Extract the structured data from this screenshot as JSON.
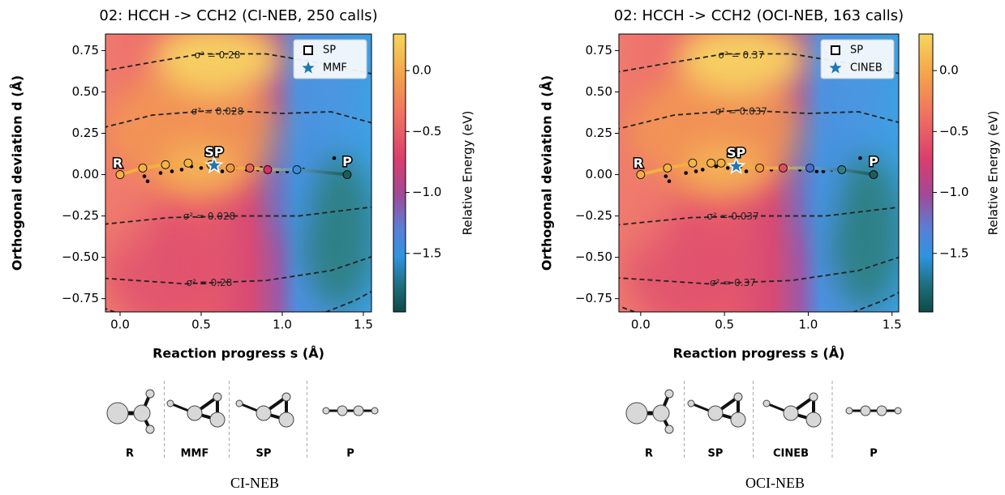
{
  "chart_data": [
    {
      "type": "scatter",
      "title": "02: HCCH -> CCH2 (CI-NEB, 250 calls)",
      "x_label": "Reaction progress s (Å)",
      "y_label": "Orthogonal deviation d (Å)",
      "colorbar_label": "Relative Energy (eV)",
      "xlim": [
        -0.09,
        1.55
      ],
      "ylim": [
        -0.83,
        0.85
      ],
      "clim": [
        -1.98,
        0.3
      ],
      "xticks": [
        {
          "value": 0,
          "label": "0.0"
        },
        {
          "value": 0.5,
          "label": "0.5"
        },
        {
          "value": 1,
          "label": "1.0"
        },
        {
          "value": 1.5,
          "label": "1.5"
        }
      ],
      "yticks": [
        {
          "value": -0.75,
          "label": "−0.75"
        },
        {
          "value": -0.5,
          "label": "−0.50"
        },
        {
          "value": -0.25,
          "label": "−0.25"
        },
        {
          "value": 0,
          "label": "0.00"
        },
        {
          "value": 0.25,
          "label": "0.25"
        },
        {
          "value": 0.5,
          "label": "0.50"
        },
        {
          "value": 0.75,
          "label": "0.75"
        }
      ],
      "cticks": [
        {
          "value": -1.5,
          "label": "−1.5"
        },
        {
          "value": -1,
          "label": "−1.0"
        },
        {
          "value": -0.5,
          "label": "−0.5"
        },
        {
          "value": 0,
          "label": "0.0"
        }
      ],
      "contour_labels": [
        "σ² = 0.28",
        "σ² = 0.028",
        "σ² = 0.028",
        "σ² = 0.28"
      ],
      "path": {
        "x": [
          0,
          0.14,
          0.28,
          0.42,
          0.56,
          0.68,
          0.8,
          0.91,
          1.09,
          1.4
        ],
        "y": [
          0,
          0.04,
          0.06,
          0.07,
          0.06,
          0.04,
          0.04,
          0.03,
          0.03,
          0
        ],
        "colors": [
          "#f5b040",
          "#f4b244",
          "#f4b448",
          "#f3b34a",
          "#f2ab46",
          "#f19a45",
          "#e8665b",
          "#d6306a",
          "#3a8fdc",
          "#1f5c55"
        ]
      },
      "samples": {
        "x": [
          0.15,
          0.17,
          0.25,
          0.32,
          0.38,
          0.44,
          0.5,
          0.62,
          0.63,
          0.72,
          0.78,
          0.82,
          0.85,
          0.87,
          0.93,
          0.97,
          1.0,
          1.03,
          1.1,
          1.13,
          1.32
        ],
        "y": [
          -0.01,
          -0.04,
          0.01,
          0.02,
          0.03,
          0.05,
          0.04,
          0.05,
          0.02,
          0.04,
          0.03,
          0.04,
          0.03,
          0.04,
          0.03,
          0.02,
          0.03,
          0.02,
          0.02,
          0.03,
          0.1
        ]
      },
      "star": {
        "x": 0.58,
        "y": 0.055,
        "color": "#1f77b4"
      },
      "start_label": "R",
      "star_label": "SP",
      "end_label": "P",
      "legend": [
        {
          "label": "SP",
          "marker": "square"
        },
        {
          "label": "MMF",
          "marker": "star",
          "color": "#1f77b4"
        }
      ],
      "structure_labels": [
        "R",
        "MMF",
        "SP",
        "P"
      ],
      "caption": "CI-NEB"
    },
    {
      "type": "scatter",
      "title": "02: HCCH -> CCH2 (OCI-NEB, 163 calls)",
      "x_label": "Reaction progress s (Å)",
      "y_label": "Orthogonal deviation d (Å)",
      "colorbar_label": "Relative Energy (eV)",
      "xlim": [
        -0.13,
        1.54
      ],
      "ylim": [
        -0.83,
        0.85
      ],
      "clim": [
        -1.98,
        0.3
      ],
      "xticks": [
        {
          "value": 0,
          "label": "0.0"
        },
        {
          "value": 0.5,
          "label": "0.5"
        },
        {
          "value": 1,
          "label": "1.0"
        },
        {
          "value": 1.5,
          "label": "1.5"
        }
      ],
      "yticks": [
        {
          "value": -0.75,
          "label": "−0.75"
        },
        {
          "value": -0.5,
          "label": "−0.50"
        },
        {
          "value": -0.25,
          "label": "−0.25"
        },
        {
          "value": 0,
          "label": "0.00"
        },
        {
          "value": 0.25,
          "label": "0.25"
        },
        {
          "value": 0.5,
          "label": "0.50"
        },
        {
          "value": 0.75,
          "label": "0.75"
        }
      ],
      "cticks": [
        {
          "value": -1.5,
          "label": "−1.5"
        },
        {
          "value": -1,
          "label": "−1.0"
        },
        {
          "value": -0.5,
          "label": "−0.5"
        },
        {
          "value": 0,
          "label": "0.0"
        }
      ],
      "contour_labels": [
        "σ² = 0.37",
        "σ² = 0.037",
        "σ² = 0.037",
        "σ² = 0.37"
      ],
      "path": {
        "x": [
          0,
          0.16,
          0.31,
          0.42,
          0.48,
          0.71,
          0.85,
          1.01,
          1.2,
          1.39
        ],
        "y": [
          0,
          0.04,
          0.07,
          0.07,
          0.07,
          0.04,
          0.04,
          0.04,
          0.03,
          0
        ],
        "colors": [
          "#f5b040",
          "#f4b244",
          "#f4b448",
          "#f3b34a",
          "#f3b048",
          "#f19a45",
          "#e05060",
          "#4a6fd0",
          "#2f7f86",
          "#1f5c55"
        ]
      },
      "samples": {
        "x": [
          0.15,
          0.17,
          0.27,
          0.33,
          0.37,
          0.45,
          0.52,
          0.6,
          0.63,
          0.72,
          0.78,
          0.83,
          0.86,
          0.9,
          0.95,
          1.0,
          1.05,
          1.09,
          1.14,
          1.31
        ],
        "y": [
          -0.01,
          -0.04,
          0.01,
          0.02,
          0.03,
          0.05,
          0.04,
          0.05,
          0.02,
          0.04,
          0.03,
          0.04,
          0.03,
          0.04,
          0.03,
          0.03,
          0.02,
          0.02,
          0.03,
          0.1
        ]
      },
      "star": {
        "x": 0.57,
        "y": 0.05,
        "color": "#1f77b4"
      },
      "start_label": "R",
      "star_label": "SP",
      "end_label": "P",
      "legend": [
        {
          "label": "SP",
          "marker": "square"
        },
        {
          "label": "CINEB",
          "marker": "star",
          "color": "#1f77b4"
        }
      ],
      "structure_labels": [
        "R",
        "SP",
        "CINEB",
        "P"
      ],
      "caption": "OCI-NEB"
    }
  ]
}
